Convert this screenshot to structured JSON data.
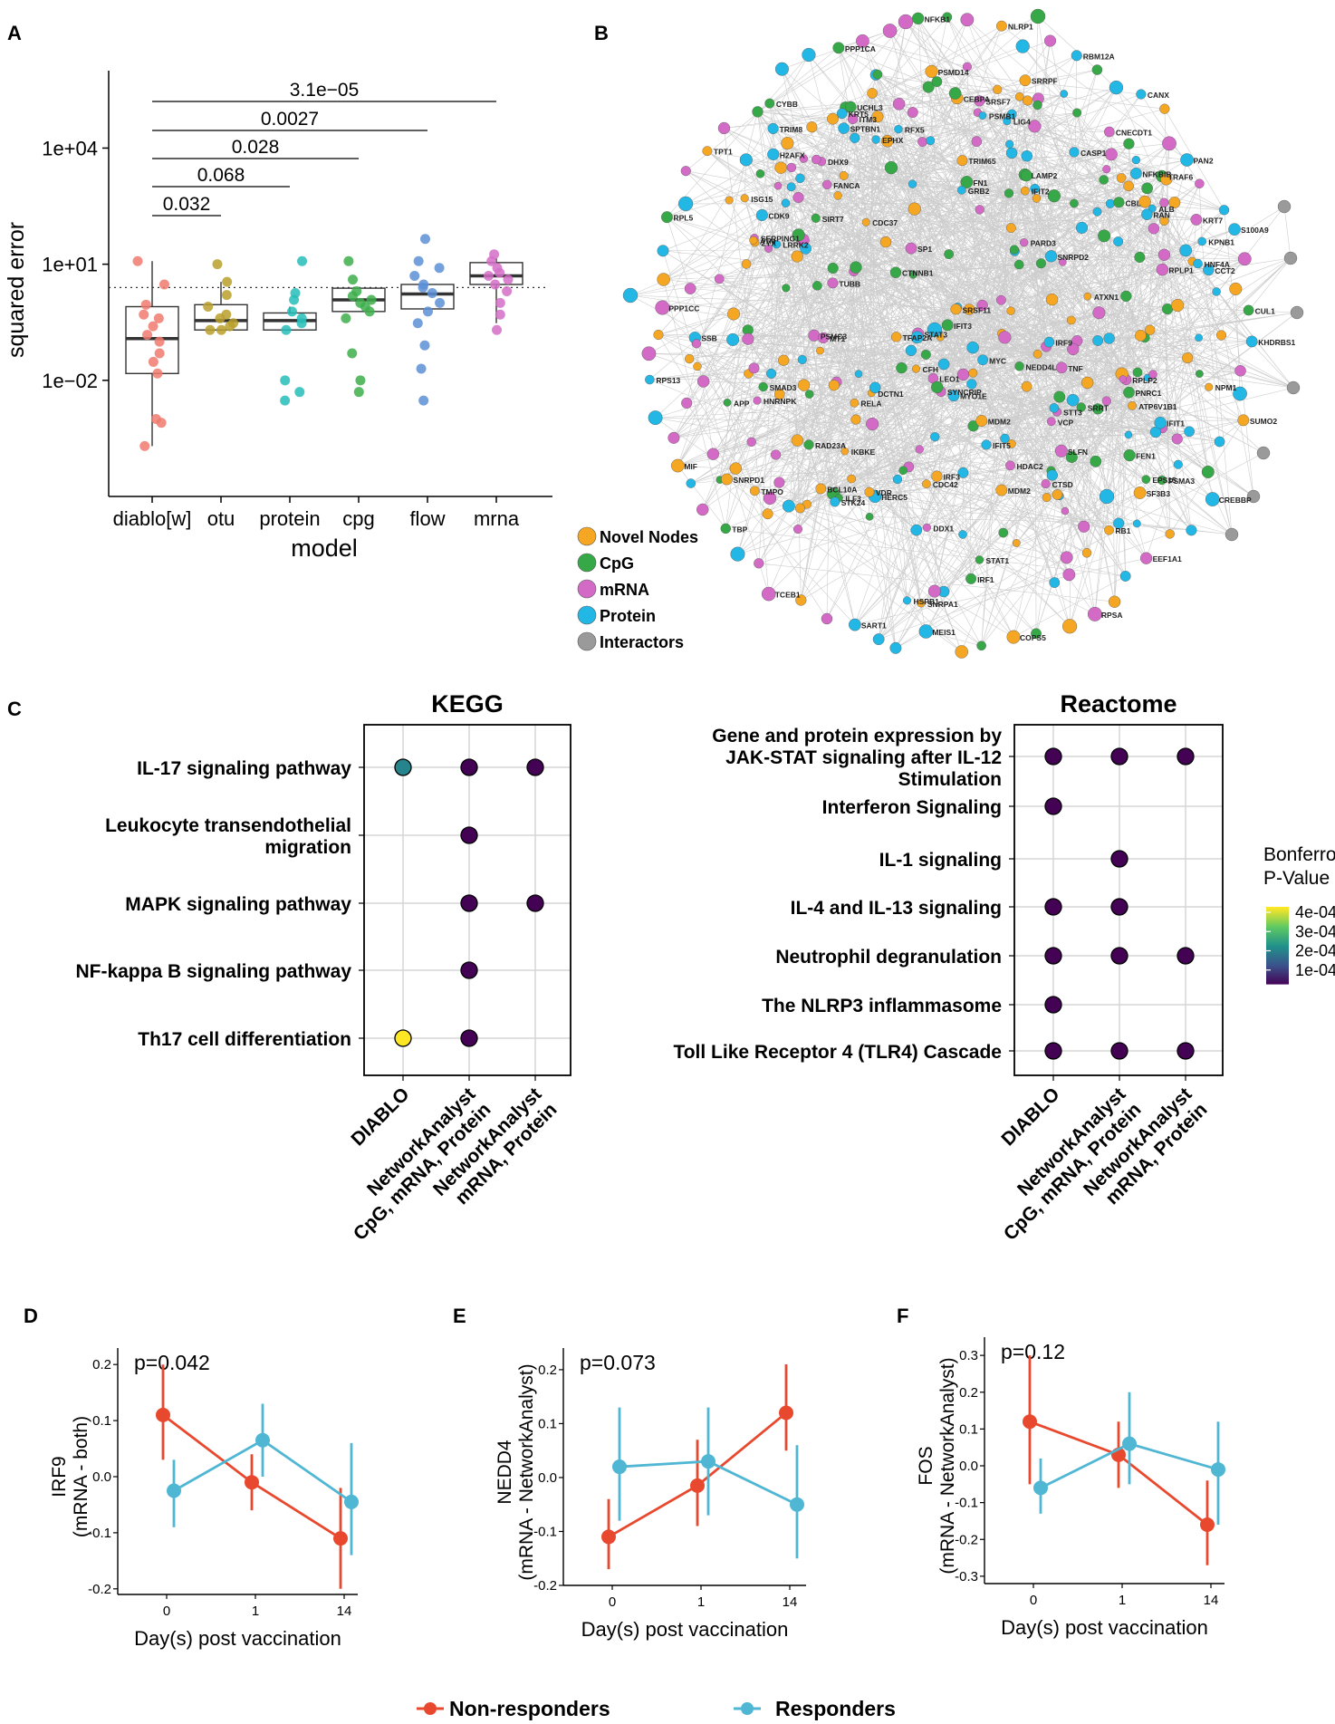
{
  "panel_letters": [
    "A",
    "B",
    "C",
    "D",
    "E",
    "F"
  ],
  "colors": {
    "nonresponders": "#E8492E",
    "responders": "#4FB6D3",
    "novel": "#F5A623",
    "cpg": "#36A847",
    "mrna": "#D36BC6",
    "protein": "#23B7E5",
    "interactors": "#9A9A9A"
  },
  "chart_data": [
    {
      "id": "A",
      "type": "box",
      "title": "",
      "xlabel": "model",
      "ylabel": "squared error",
      "yscale": "log10",
      "ylim": [
        1e-05,
        1000000
      ],
      "ytick_labels": [
        "1e+04",
        "1e+01",
        "1e−02"
      ],
      "ytick_values": [
        10000,
        10,
        0.01
      ],
      "dotted_reference": 2.5,
      "categories": [
        "diablo[w]",
        "otu",
        "protein",
        "cpg",
        "flow",
        "mrna"
      ],
      "category_colors": [
        "#F07A6E",
        "#B8A02C",
        "#27BDB8",
        "#3DAE4B",
        "#5C8FD6",
        "#D46FC8"
      ],
      "boxes": [
        {
          "q1": 0.015,
          "median": 0.12,
          "q3": 0.8,
          "lo": 0.0002,
          "hi": 12
        },
        {
          "q1": 0.2,
          "median": 0.35,
          "q3": 0.9,
          "lo": 0.2,
          "hi": 3.5
        },
        {
          "q1": 0.2,
          "median": 0.35,
          "q3": 0.55,
          "lo": 0.2,
          "hi": 0.8
        },
        {
          "q1": 0.6,
          "median": 1.2,
          "q3": 2.4,
          "lo": 0.6,
          "hi": 2.4
        },
        {
          "q1": 0.7,
          "median": 1.7,
          "q3": 3.0,
          "lo": 0.7,
          "hi": 3.0
        },
        {
          "q1": 3.0,
          "median": 5.0,
          "q3": 11,
          "lo": 0.3,
          "hi": 14
        }
      ],
      "points": [
        [
          12,
          3,
          0.9,
          0.5,
          0.4,
          0.25,
          0.15,
          0.1,
          0.05,
          0.03,
          0.015,
          0.001,
          0.0008,
          0.0002
        ],
        [
          10,
          3.5,
          1.6,
          0.8,
          0.5,
          0.4,
          0.3,
          0.25,
          0.2,
          0.2
        ],
        [
          12,
          1.8,
          1.2,
          0.6,
          0.4,
          0.3,
          0.2,
          0.01,
          0.005,
          0.003
        ],
        [
          12,
          4.0,
          2.0,
          1.5,
          1.2,
          1.0,
          0.8,
          0.6,
          0.4,
          0.05,
          0.01,
          0.005
        ],
        [
          45,
          12,
          8,
          5,
          3,
          2.5,
          1.8,
          1.0,
          0.6,
          0.3,
          0.08,
          0.02,
          0.003
        ],
        [
          18,
          12,
          8,
          6,
          5,
          4,
          3,
          2,
          1,
          0.5,
          0.2
        ]
      ],
      "comparisons": [
        {
          "from": 0,
          "to": 1,
          "label": "0.032"
        },
        {
          "from": 0,
          "to": 2,
          "label": "0.068"
        },
        {
          "from": 0,
          "to": 3,
          "label": "0.028"
        },
        {
          "from": 0,
          "to": 4,
          "label": "0.0027"
        },
        {
          "from": 0,
          "to": 5,
          "label": "3.1e−05"
        }
      ]
    },
    {
      "id": "B",
      "type": "network",
      "legend": [
        "Novel Nodes",
        "CpG",
        "mRNA",
        "Protein",
        "Interactors"
      ],
      "labels": [
        "KHDRBS1",
        "SUMO2",
        "CREBBP",
        "EEF1A1",
        "RPSA",
        "COPS5",
        "MEIS1",
        "SART1",
        "TCEB1",
        "TBP",
        "MIF",
        "RPS13",
        "PPP1CC",
        "RPL5",
        "TPT1",
        "CYBB",
        "PPP1CA",
        "NFKB1",
        "NLRP1",
        "RBM12A",
        "CANX",
        "PAN2",
        "S100A9",
        "CUL1",
        "LIG4",
        "PARD3",
        "ATXN1",
        "FEN1",
        "RFX5",
        "NEDD4L",
        "FN1",
        "CEBPA",
        "SSB",
        "CASP1",
        "H2AFX",
        "PSMC3",
        "SERPING1",
        "DCTN1",
        "CDC42",
        "SP1",
        "CNECDT1",
        "LEO1",
        "TUBB",
        "ZYX",
        "SIRT7",
        "TRAF6",
        "VCP",
        "ALB",
        "SRSF11",
        "KRT7",
        "HNRNPK",
        "STAT3",
        "RAN",
        "ATP6V1B1",
        "HDAC2",
        "PSMD14",
        "SRSF7",
        "RPLP1",
        "SRRT",
        "ATM",
        "CTSD",
        "NPM1",
        "IKBKE",
        "SPTBN1",
        "KRT5",
        "BCL10A",
        "MYC",
        "CFH",
        "NFKBIB",
        "FANCA",
        "RPLP2",
        "CTNNB1",
        "CBL",
        "DDX1",
        "MYO1E",
        "PSMB1",
        "CDC37",
        "ITM3",
        "RB1",
        "RELA",
        "STT3",
        "LAMP2",
        "PNRC1",
        "UCHL3",
        "SNRPD1",
        "TNF",
        "KPNB1",
        "TFAP2A",
        "SMAD3",
        "IRF1",
        "SF3B3",
        "APP",
        "GRB2",
        "MT1",
        "HERC5",
        "SNRPD2",
        "IRF9",
        "LRRK2",
        "EPS15",
        "EPHX",
        "DHX9",
        "SLFN",
        "RAD23A",
        "MDM2",
        "TRIM65",
        "IFIT3",
        "PSMA3",
        "HSPB1",
        "SRRPF",
        "VDR",
        "ISG15",
        "SNRPA1",
        "IFIT5",
        "IRF3",
        "MDM2",
        "TMPO",
        "CDK9",
        "CCT2",
        "ILF3",
        "HNF4A",
        "STK24",
        "STAT1",
        "IFIT1",
        "TRIM8",
        "SYNCRIP",
        "IFIT2"
      ]
    },
    {
      "id": "C-KEGG",
      "type": "dot",
      "title": "KEGG",
      "categories": [
        "DIABLO",
        "NetworkAnalyst\nCpG, mRNA, Protein",
        "NetworkAnalyst\nmRNA, Protein"
      ],
      "rows": [
        "IL-17 signaling pathway",
        "Leukocyte transendothelial\nmigration",
        "MAPK signaling pathway",
        "NF-kappa B signaling pathway",
        "Th17 cell differentiation"
      ],
      "points": [
        {
          "row": 0,
          "col": 0,
          "p": 0.00018
        },
        {
          "row": 0,
          "col": 1,
          "p": 1e-06
        },
        {
          "row": 0,
          "col": 2,
          "p": 1e-06
        },
        {
          "row": 1,
          "col": 1,
          "p": 1e-06
        },
        {
          "row": 2,
          "col": 1,
          "p": 1e-06
        },
        {
          "row": 2,
          "col": 2,
          "p": 1e-06
        },
        {
          "row": 3,
          "col": 1,
          "p": 1e-06
        },
        {
          "row": 4,
          "col": 0,
          "p": 0.0004
        },
        {
          "row": 4,
          "col": 1,
          "p": 1e-06
        }
      ]
    },
    {
      "id": "C-Reactome",
      "type": "dot",
      "title": "Reactome",
      "categories": [
        "DIABLO",
        "NetworkAnalyst\nCpG, mRNA, Protein",
        "NetworkAnalyst\nmRNA, Protein"
      ],
      "rows": [
        "Gene and protein expression by\nJAK-STAT signaling after IL-12\nStimulation",
        "Interferon Signaling",
        "IL-1 signaling",
        "IL-4 and IL-13 signaling",
        "Neutrophil degranulation",
        "The NLRP3 inflammasome",
        "Toll Like Receptor 4 (TLR4) Cascade"
      ],
      "points": [
        {
          "row": 0,
          "col": 0,
          "p": 1e-06
        },
        {
          "row": 0,
          "col": 1,
          "p": 1e-06
        },
        {
          "row": 0,
          "col": 2,
          "p": 1e-06
        },
        {
          "row": 1,
          "col": 0,
          "p": 1e-06
        },
        {
          "row": 2,
          "col": 1,
          "p": 1e-06
        },
        {
          "row": 3,
          "col": 0,
          "p": 1e-06
        },
        {
          "row": 3,
          "col": 1,
          "p": 1e-06
        },
        {
          "row": 4,
          "col": 0,
          "p": 1e-06
        },
        {
          "row": 4,
          "col": 1,
          "p": 1e-06
        },
        {
          "row": 4,
          "col": 2,
          "p": 1e-06
        },
        {
          "row": 5,
          "col": 0,
          "p": 1e-06
        },
        {
          "row": 6,
          "col": 0,
          "p": 1e-06
        },
        {
          "row": 6,
          "col": 1,
          "p": 1e-06
        },
        {
          "row": 6,
          "col": 2,
          "p": 1e-06
        }
      ],
      "colorbar": {
        "title": "Bonferroni\nP-Value",
        "range": [
          0,
          0.0004
        ],
        "tick_labels": [
          "4e-04",
          "3e-04",
          "2e-04",
          "1e-04"
        ],
        "tick_values": [
          0.0004,
          0.0003,
          0.0002,
          0.0001
        ]
      }
    },
    {
      "id": "D",
      "type": "line",
      "annotation": "p=0.042",
      "xlabel": "Day(s) post vaccination",
      "ylabel": "IRF9\n(mRNA - both)",
      "x_categories": [
        "0",
        "1",
        "14"
      ],
      "ylim": [
        -0.21,
        0.21
      ],
      "ytick_values": [
        0.2,
        0.1,
        0.0,
        -0.1,
        -0.2
      ],
      "ytick_labels": [
        "0.2",
        "0.1",
        "0.0",
        "-0.1",
        "-0.2"
      ],
      "series": [
        {
          "name": "Non-responders",
          "values": [
            0.11,
            -0.01,
            -0.11
          ],
          "lower": [
            0.03,
            -0.06,
            -0.2
          ],
          "upper": [
            0.2,
            0.04,
            -0.02
          ]
        },
        {
          "name": "Responders",
          "values": [
            -0.025,
            0.065,
            -0.045
          ],
          "lower": [
            -0.09,
            0.0,
            -0.14
          ],
          "upper": [
            0.03,
            0.13,
            0.06
          ]
        }
      ]
    },
    {
      "id": "E",
      "type": "line",
      "annotation": "p=0.073",
      "xlabel": "Day(s) post vaccination",
      "ylabel": "NEDD4\n(mRNA - NetworkAnalyst)",
      "x_categories": [
        "0",
        "1",
        "14"
      ],
      "ylim": [
        -0.2,
        0.22
      ],
      "ytick_values": [
        0.2,
        0.1,
        0.0,
        -0.1,
        -0.2
      ],
      "ytick_labels": [
        "0.2",
        "0.1",
        "0.0",
        "-0.1",
        "-0.2"
      ],
      "series": [
        {
          "name": "Non-responders",
          "values": [
            -0.11,
            -0.015,
            0.12
          ],
          "lower": [
            -0.17,
            -0.09,
            0.05
          ],
          "upper": [
            -0.04,
            0.07,
            0.21
          ]
        },
        {
          "name": "Responders",
          "values": [
            0.02,
            0.03,
            -0.05
          ],
          "lower": [
            -0.08,
            -0.07,
            -0.15
          ],
          "upper": [
            0.13,
            0.13,
            0.06
          ]
        }
      ]
    },
    {
      "id": "F",
      "type": "line",
      "annotation": "p=0.12",
      "xlabel": "Day(s) post vaccination",
      "ylabel": "FOS\n(mRNA - NetworkAnalyst)",
      "x_categories": [
        "0",
        "1",
        "14"
      ],
      "ylim": [
        -0.32,
        0.32
      ],
      "ytick_values": [
        0.3,
        0.2,
        0.1,
        0.0,
        -0.1,
        -0.2,
        -0.3
      ],
      "ytick_labels": [
        "0.3",
        "0.2",
        "0.1",
        "0.0",
        "-0.1",
        "-0.2",
        "-0.3"
      ],
      "series": [
        {
          "name": "Non-responders",
          "values": [
            0.12,
            0.03,
            -0.16
          ],
          "lower": [
            -0.05,
            -0.06,
            -0.27
          ],
          "upper": [
            0.3,
            0.12,
            -0.04
          ]
        },
        {
          "name": "Responders",
          "values": [
            -0.06,
            0.06,
            -0.01
          ],
          "lower": [
            -0.13,
            -0.05,
            -0.16
          ],
          "upper": [
            0.02,
            0.2,
            0.12
          ]
        }
      ]
    }
  ],
  "bottom_legend": [
    "Non-responders",
    "Responders"
  ]
}
